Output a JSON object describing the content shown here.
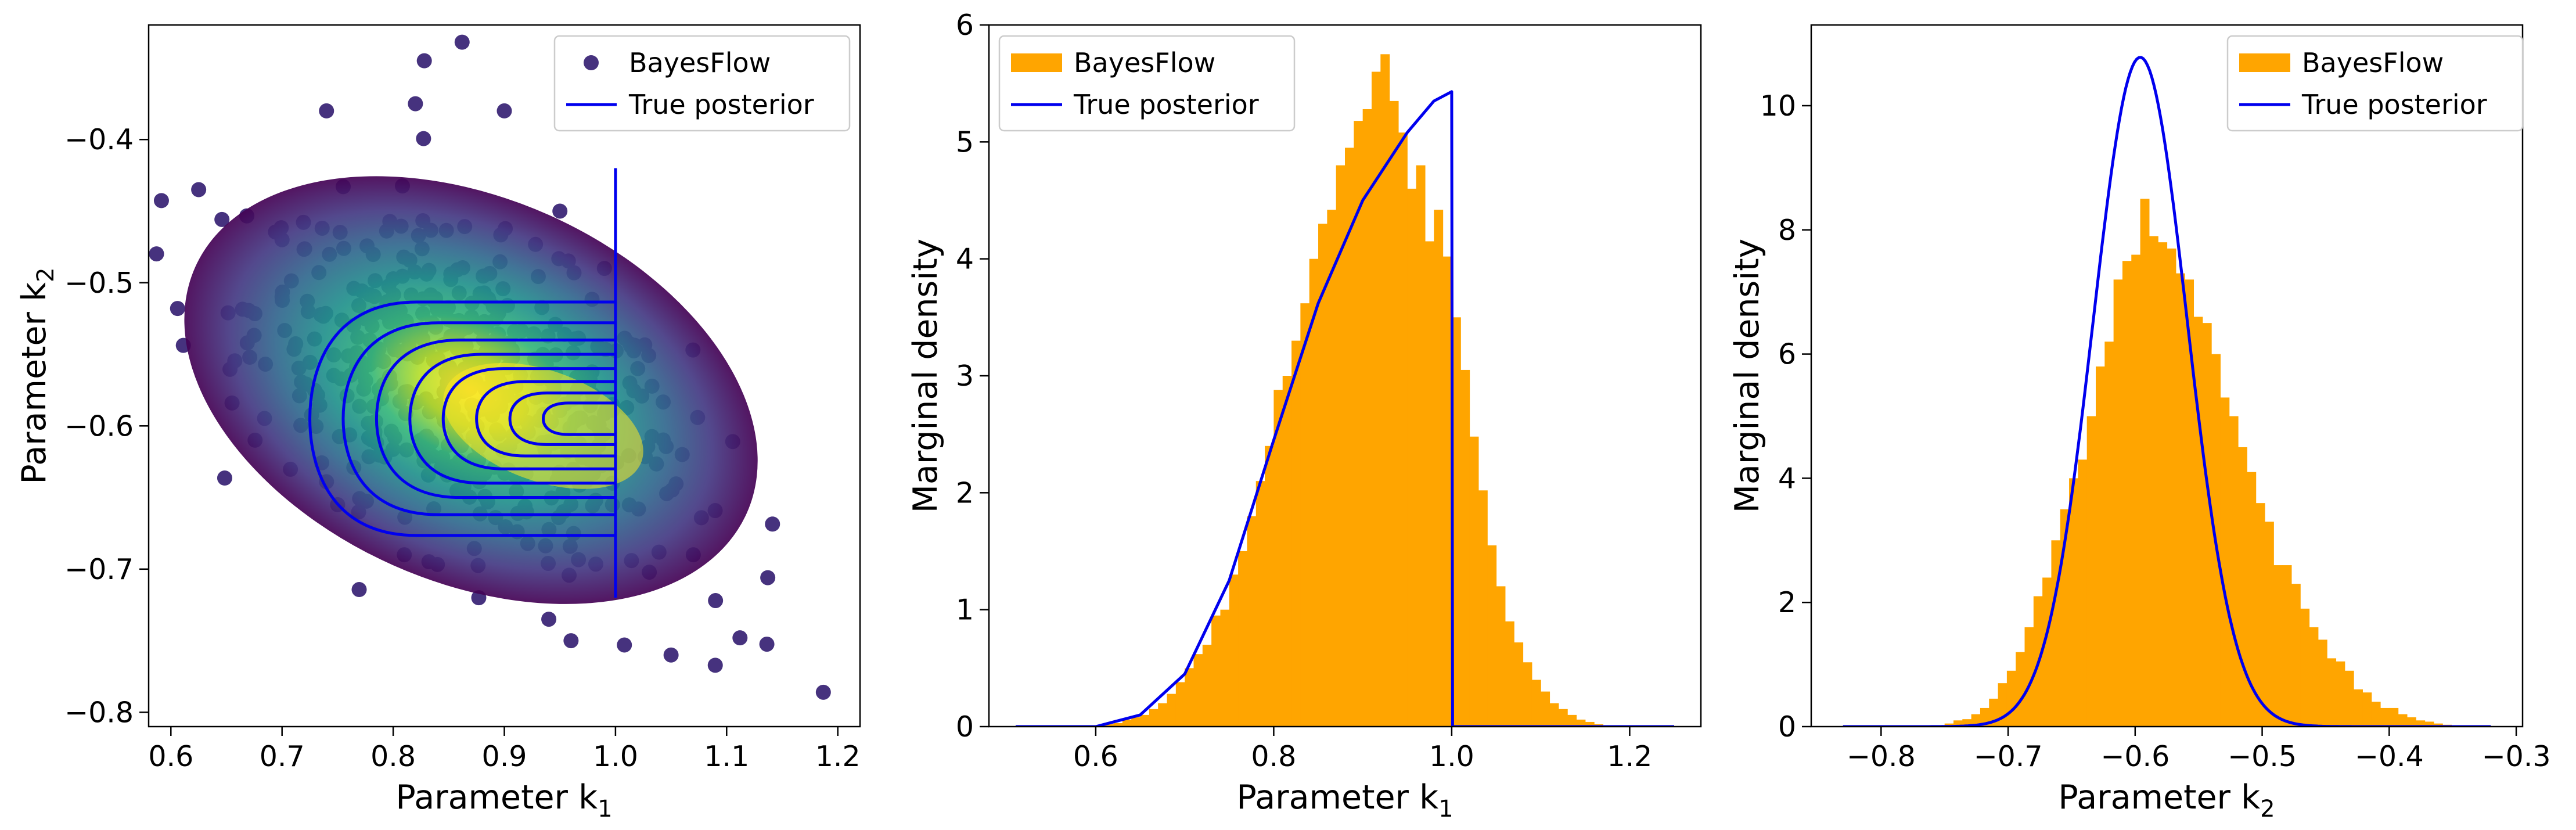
{
  "chart_data": [
    {
      "type": "scatter",
      "xlabel": "Parameter k",
      "xlabel_sub": "1",
      "ylabel": "Parameter k",
      "ylabel_sub": "2",
      "xlim": [
        0.58,
        1.22
      ],
      "ylim": [
        -0.81,
        -0.32
      ],
      "xticks": [
        0.6,
        0.7,
        0.8,
        0.9,
        1.0,
        1.1,
        1.2
      ],
      "xtick_labels": [
        "0.6",
        "0.7",
        "0.8",
        "0.9",
        "1.0",
        "1.1",
        "1.2"
      ],
      "yticks": [
        -0.4,
        -0.5,
        -0.6,
        -0.7,
        -0.8
      ],
      "ytick_labels": [
        "−0.4",
        "−0.5",
        "−0.6",
        "−0.7",
        "−0.8"
      ],
      "legend": [
        "BayesFlow",
        "True posterior"
      ],
      "legend_position": "top-right",
      "colors": {
        "contour": "#0000ee",
        "scatter_low": "#440154",
        "scatter_high": "#fde725",
        "marker": "#46327e"
      },
      "scatter_density": {
        "mean_k1": 0.87,
        "mean_k2": -0.575,
        "sd_k1": 0.085,
        "sd_k2": 0.05,
        "correlation": -0.5
      },
      "outliers": [
        [
          0.606,
          -0.518
        ],
        [
          0.625,
          -0.435
        ],
        [
          0.862,
          -0.332
        ],
        [
          0.828,
          -0.345
        ],
        [
          0.74,
          -0.38
        ],
        [
          0.7,
          -0.51
        ],
        [
          0.655,
          -0.584
        ],
        [
          0.7,
          -0.47
        ],
        [
          1.187,
          -0.786
        ],
        [
          1.137,
          -0.706
        ],
        [
          1.112,
          -0.748
        ],
        [
          1.05,
          -0.76
        ],
        [
          1.008,
          -0.753
        ],
        [
          0.96,
          -0.75
        ],
        [
          0.94,
          -0.735
        ],
        [
          0.877,
          -0.72
        ],
        [
          0.81,
          -0.69
        ],
        [
          0.75,
          -0.655
        ],
        [
          1.09,
          -0.722
        ],
        [
          1.07,
          -0.69
        ],
        [
          0.82,
          -0.375
        ],
        [
          0.9,
          -0.38
        ],
        [
          0.95,
          -0.45
        ],
        [
          0.99,
          -0.49
        ],
        [
          1.02,
          -0.56
        ],
        [
          1.06,
          -0.62
        ]
      ],
      "true_posterior_contours": {
        "k1_max": 1.0,
        "k2_center": -0.595,
        "k1_left": [
          0.725,
          0.755,
          0.785,
          0.815,
          0.845,
          0.875,
          0.905,
          0.935
        ],
        "k2_half_heights": [
          0.0815,
          0.067,
          0.055,
          0.045,
          0.035,
          0.026,
          0.018,
          0.011
        ]
      },
      "true_posterior_vline": {
        "k1": 1.0,
        "k2_from": -0.42,
        "k2_to": -0.72
      }
    },
    {
      "type": "bar",
      "xlabel": "Parameter k",
      "xlabel_sub": "1",
      "ylabel": "Marginal density",
      "xlim": [
        0.48,
        1.28
      ],
      "ylim": [
        0,
        6
      ],
      "xticks": [
        0.6,
        0.8,
        1.0,
        1.2
      ],
      "xtick_labels": [
        "0.6",
        "0.8",
        "1.0",
        "1.2"
      ],
      "yticks": [
        0,
        1,
        2,
        3,
        4,
        5,
        6
      ],
      "ytick_labels": [
        "0",
        "1",
        "2",
        "3",
        "4",
        "5",
        "6"
      ],
      "legend": [
        "BayesFlow",
        "True posterior"
      ],
      "legend_position": "top-left",
      "colors": {
        "hist": "#ffa500",
        "line": "#0000ee"
      },
      "hist_bin_width": 0.01,
      "hist_bin_start": 0.6,
      "hist_values": [
        0.01,
        0.02,
        0.03,
        0.06,
        0.08,
        0.1,
        0.15,
        0.2,
        0.28,
        0.38,
        0.5,
        0.62,
        0.7,
        0.95,
        1.0,
        1.3,
        1.5,
        1.8,
        2.1,
        2.4,
        2.88,
        3.0,
        3.3,
        3.62,
        4.0,
        4.3,
        4.42,
        4.8,
        4.95,
        5.18,
        5.28,
        5.6,
        5.75,
        5.35,
        5.08,
        4.6,
        4.8,
        4.15,
        4.42,
        4.02,
        3.5,
        3.05,
        2.48,
        2.02,
        1.55,
        1.2,
        0.9,
        0.72,
        0.55,
        0.4,
        0.3,
        0.2,
        0.15,
        0.1,
        0.06,
        0.04,
        0.02,
        0.01
      ],
      "true_posterior_curve": {
        "x": [
          0.51,
          0.55,
          0.6,
          0.65,
          0.7,
          0.75,
          0.8,
          0.85,
          0.9,
          0.95,
          0.98,
          1.0,
          1.001,
          1.05,
          1.1,
          1.15,
          1.2,
          1.25
        ],
        "y": [
          0.0,
          0.0,
          0.0,
          0.1,
          0.45,
          1.25,
          2.45,
          3.62,
          4.5,
          5.08,
          5.35,
          5.43,
          0.0,
          0.0,
          0.0,
          0.0,
          0.0,
          0.0
        ]
      }
    },
    {
      "type": "bar",
      "xlabel": "Parameter k",
      "xlabel_sub": "2",
      "ylabel": "Marginal density",
      "xlim": [
        -0.855,
        -0.295
      ],
      "ylim": [
        0,
        11.3
      ],
      "xticks": [
        -0.8,
        -0.7,
        -0.6,
        -0.5,
        -0.4,
        -0.3
      ],
      "xtick_labels": [
        "−0.8",
        "−0.7",
        "−0.6",
        "−0.5",
        "−0.4",
        "−0.3"
      ],
      "yticks": [
        0,
        2,
        4,
        6,
        8,
        10
      ],
      "ytick_labels": [
        "0",
        "2",
        "4",
        "6",
        "8",
        "10"
      ],
      "legend": [
        "BayesFlow",
        "True posterior"
      ],
      "legend_position": "top-right",
      "colors": {
        "hist": "#ffa500",
        "line": "#0000ee"
      },
      "hist_bin_width": 0.007,
      "hist_bin_start": -0.75,
      "hist_values": [
        0.05,
        0.1,
        0.12,
        0.2,
        0.3,
        0.45,
        0.7,
        0.9,
        1.2,
        1.6,
        2.1,
        2.4,
        3.0,
        3.5,
        4.0,
        4.3,
        5.0,
        5.8,
        6.2,
        7.2,
        7.5,
        7.6,
        8.5,
        7.9,
        7.8,
        7.7,
        7.3,
        7.2,
        6.6,
        6.5,
        6.0,
        5.3,
        5.0,
        4.5,
        4.1,
        3.6,
        3.3,
        2.6,
        2.6,
        2.3,
        1.9,
        1.6,
        1.4,
        1.1,
        1.05,
        0.9,
        0.6,
        0.55,
        0.4,
        0.3,
        0.3,
        0.2,
        0.15,
        0.1,
        0.08,
        0.05,
        0.03
      ],
      "true_posterior_curve": {
        "mu": -0.596,
        "sigma": 0.037,
        "peak": 10.78,
        "x_from": -0.83,
        "x_to": -0.32
      }
    }
  ]
}
